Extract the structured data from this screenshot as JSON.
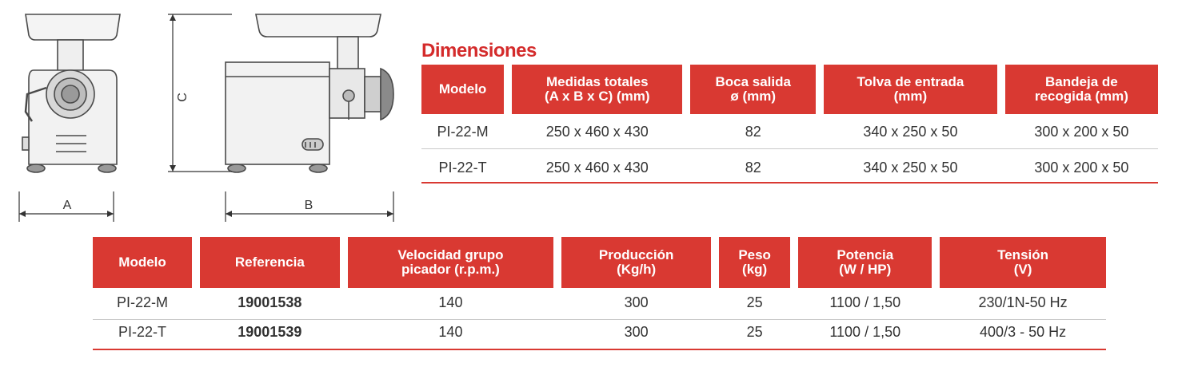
{
  "drawing": {
    "label_a": "A",
    "label_b": "B",
    "label_c": "C"
  },
  "dimensions": {
    "title": "Dimensiones",
    "headers": [
      [
        "Modelo"
      ],
      [
        "Medidas totales",
        "(A x B x C) (mm)"
      ],
      [
        "Boca salida",
        "ø (mm)"
      ],
      [
        "Tolva de entrada",
        "(mm)"
      ],
      [
        "Bandeja de",
        "recogida (mm)"
      ]
    ],
    "rows": [
      [
        "PI-22-M",
        "250 x 460 x 430",
        "82",
        "340 x 250 x 50",
        "300 x 200 x 50"
      ],
      [
        "PI-22-T",
        "250 x 460 x 430",
        "82",
        "340 x 250 x 50",
        "300 x 200 x 50"
      ]
    ]
  },
  "specs": {
    "headers": [
      [
        "Modelo"
      ],
      [
        "Referencia"
      ],
      [
        "Velocidad grupo",
        "picador (r.p.m.)"
      ],
      [
        "Producción",
        "(Kg/h)"
      ],
      [
        "Peso",
        "(kg)"
      ],
      [
        "Potencia",
        "(W / HP)"
      ],
      [
        "Tensión",
        "(V)"
      ]
    ],
    "rows": [
      [
        "PI-22-M",
        "19001538",
        "140",
        "300",
        "25",
        "1100 / 1,50",
        "230/1N-50 Hz"
      ],
      [
        "PI-22-T",
        "19001539",
        "140",
        "300",
        "25",
        "1100 / 1,50",
        "400/3 - 50 Hz"
      ]
    ]
  }
}
